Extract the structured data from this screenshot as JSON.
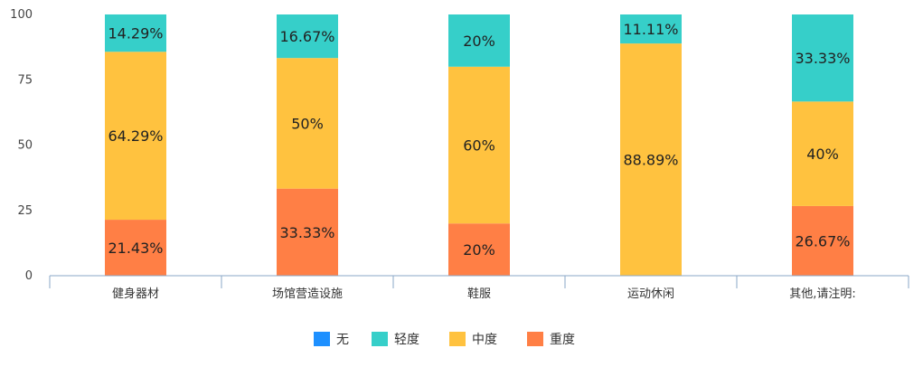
{
  "chart_data": {
    "type": "bar",
    "stacked": true,
    "percent_stacked": true,
    "categories": [
      "健身器材",
      "场馆营造设施",
      "鞋服",
      "运动休闲",
      "其他,请注明:"
    ],
    "series": [
      {
        "name": "无",
        "color": "#1E90FF",
        "values": [
          0,
          0,
          0,
          0,
          0
        ],
        "labels": [
          "",
          "",
          "",
          "",
          ""
        ]
      },
      {
        "name": "重度",
        "color": "#FF7F45",
        "values": [
          21.43,
          33.33,
          20,
          0,
          26.67
        ],
        "labels": [
          "21.43%",
          "33.33%",
          "20%",
          "",
          "26.67%"
        ]
      },
      {
        "name": "中度",
        "color": "#FFC23F",
        "values": [
          64.29,
          50,
          60,
          88.89,
          40
        ],
        "labels": [
          "64.29%",
          "50%",
          "60%",
          "88.89%",
          "40%"
        ]
      },
      {
        "name": "轻度",
        "color": "#36CFC9",
        "values": [
          14.29,
          16.67,
          20,
          11.11,
          33.33
        ],
        "labels": [
          "14.29%",
          "16.67%",
          "20%",
          "11.11%",
          "33.33%"
        ]
      }
    ],
    "legend_order": [
      "无",
      "轻度",
      "中度",
      "重度"
    ],
    "yticks": [
      "0",
      "25",
      "50",
      "75",
      "100"
    ],
    "ylim": [
      0,
      100
    ],
    "legend_position": "bottom-center",
    "grid": false
  }
}
